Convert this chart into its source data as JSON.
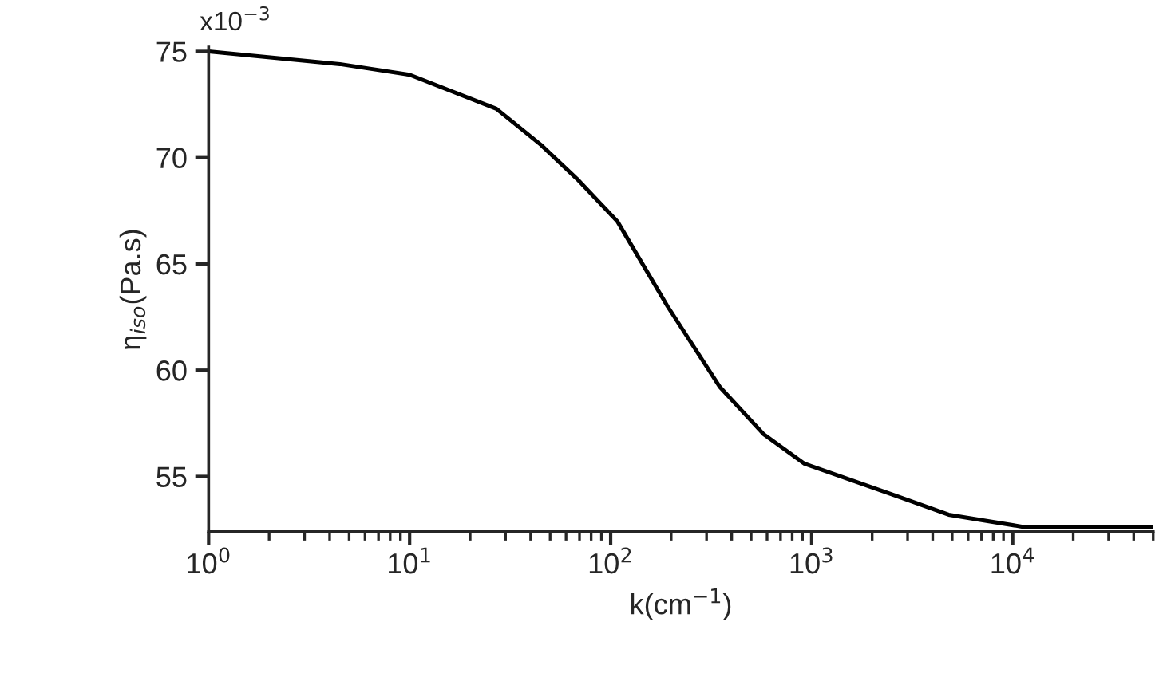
{
  "chart_data": {
    "type": "line",
    "xlabel": "k(cm$^{−1}$)",
    "ylabel": "η$_{iso}$(Pa.s)",
    "x": [
      1,
      4.5,
      10,
      27,
      45,
      68,
      108,
      192,
      350,
      575,
      920,
      2600,
      4800,
      11700,
      50000
    ],
    "series": [
      {
        "color": "#000000",
        "values": [
          75.0,
          74.4,
          73.9,
          72.3,
          70.6,
          69.0,
          67.0,
          63.0,
          59.2,
          57.0,
          55.6,
          54.1,
          53.2,
          52.6,
          52.6
        ]
      }
    ],
    "log": "x",
    "xlim": [
      1,
      50000
    ],
    "ylim": [
      52.4,
      75.2
    ],
    "xticks": [
      {
        "value": 1,
        "label": "10$^{0}$"
      },
      {
        "value": 10,
        "label": "10$^{1}$"
      },
      {
        "value": 100,
        "label": "10$^{2}$"
      },
      {
        "value": 1000,
        "label": "10$^{3}$"
      },
      {
        "value": 10000,
        "label": "10$^{4}$"
      }
    ],
    "yticks": [
      55,
      60,
      65,
      70,
      75
    ],
    "annotations": [
      "x10$^{−3}$"
    ],
    "grid": false,
    "marker": "none",
    "line_style": "solid"
  }
}
